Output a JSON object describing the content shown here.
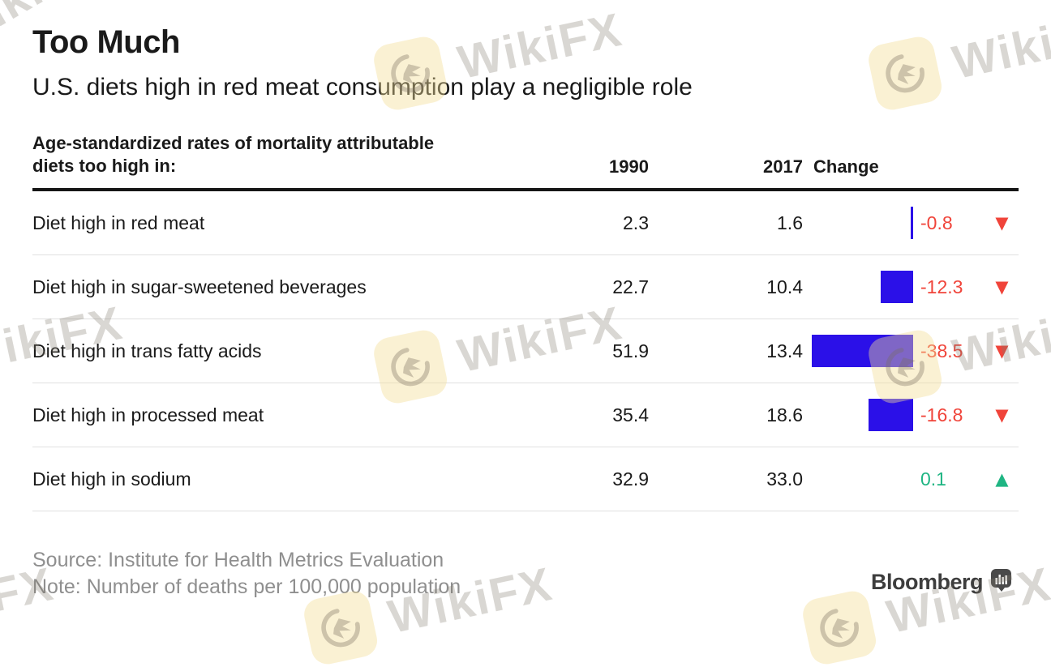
{
  "header": {
    "title": "Too Much",
    "subtitle": "U.S. diets high in red meat consumption play a negligible role"
  },
  "table": {
    "caption_line1": "Age-standardized rates of mortality attributable",
    "caption_line2": "diets too high in:",
    "columns": [
      "1990",
      "2017",
      "Change"
    ],
    "rows": [
      {
        "label": "Diet high in red meat",
        "y1990": "2.3",
        "y2017": "1.6",
        "change": "-0.8",
        "direction": "down"
      },
      {
        "label": "Diet high in sugar-sweetened beverages",
        "y1990": "22.7",
        "y2017": "10.4",
        "change": "-12.3",
        "direction": "down"
      },
      {
        "label": "Diet high in trans fatty acids",
        "y1990": "51.9",
        "y2017": "13.4",
        "change": "-38.5",
        "direction": "down"
      },
      {
        "label": "Diet high in processed meat",
        "y1990": "35.4",
        "y2017": "18.6",
        "change": "-16.8",
        "direction": "down"
      },
      {
        "label": "Diet high in sodium",
        "y1990": "32.9",
        "y2017": "33.0",
        "change": "0.1",
        "direction": "up"
      }
    ]
  },
  "footer": {
    "source": "Source: Institute for Health Metrics Evaluation",
    "note": "Note: Number of deaths per 100,000 population",
    "brand": "Bloomberg"
  },
  "watermark": {
    "text": "WikiFX"
  },
  "icons": {
    "down": "▼",
    "up": "▲"
  },
  "colors": {
    "bar_blue": "#2b10e8",
    "down_red": "#f0443a",
    "up_green": "#1fb583",
    "rule_black": "#161616",
    "separator_gray": "#e0e0e0",
    "footnote_gray": "#8f8f8f",
    "brand_gray": "#3d3d3d"
  },
  "chart_data": {
    "type": "table",
    "title": "Too Much",
    "subtitle": "U.S. diets high in red meat consumption play a negligible role",
    "caption": "Age-standardized rates of mortality attributable diets too high in:",
    "categories": [
      "Diet high in red meat",
      "Diet high in sugar-sweetened beverages",
      "Diet high in trans fatty acids",
      "Diet high in processed meat",
      "Diet high in sodium"
    ],
    "series": [
      {
        "name": "1990",
        "values": [
          2.3,
          22.7,
          51.9,
          35.4,
          32.9
        ]
      },
      {
        "name": "2017",
        "values": [
          1.6,
          10.4,
          13.4,
          18.6,
          33.0
        ]
      },
      {
        "name": "Change",
        "values": [
          -0.8,
          -12.3,
          -38.5,
          -16.8,
          0.1
        ]
      }
    ],
    "bar_encoding": "Change column magnitude drawn as right-anchored blue bars; red down-triangle for decreases, green up-triangle for increases",
    "source": "Source: Institute for Health Metrics Evaluation",
    "note": "Note: Number of deaths per 100,000 population"
  }
}
